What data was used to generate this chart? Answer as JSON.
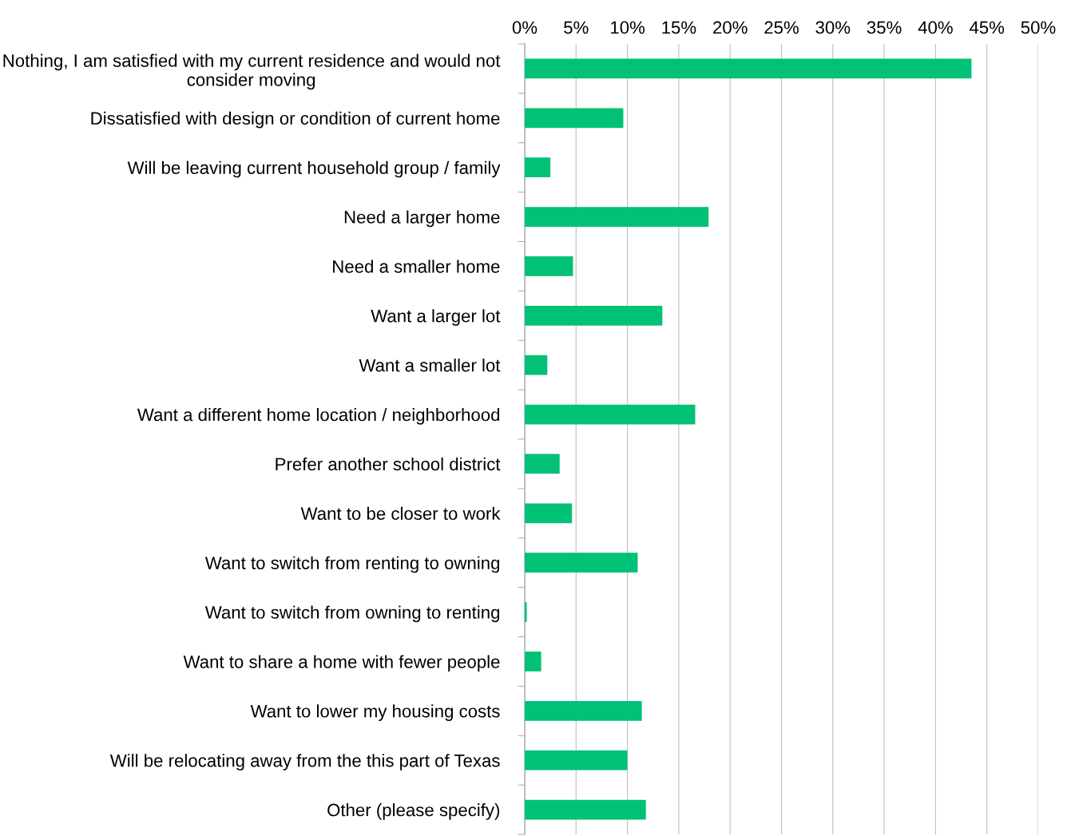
{
  "chart_data": {
    "type": "bar",
    "orientation": "horizontal",
    "categories": [
      "Nothing, I am satisfied with my current residence and would not\nconsider moving",
      "Dissatisfied with design or condition of current home",
      "Will be leaving current household group / family",
      "Need a larger home",
      "Need a smaller home",
      "Want a larger lot",
      "Want a smaller lot",
      "Want a different home location / neighborhood",
      "Prefer another school district",
      "Want to be closer to work",
      "Want to switch from renting to owning",
      "Want to switch from owning to renting",
      "Want to share a home with fewer people",
      "Want to lower my housing costs",
      "Will be relocating away from the this part of Texas",
      "Other (please specify)"
    ],
    "values": [
      43.5,
      9.6,
      2.5,
      17.9,
      4.7,
      13.4,
      2.2,
      16.6,
      3.4,
      4.6,
      11.0,
      0.2,
      1.6,
      11.4,
      10.0,
      11.8
    ],
    "color": "#00c176",
    "xlim": [
      0,
      50
    ],
    "xticks": [
      {
        "value": 0,
        "label": "0%"
      },
      {
        "value": 5,
        "label": "5%"
      },
      {
        "value": 10,
        "label": "10%"
      },
      {
        "value": 15,
        "label": "15%"
      },
      {
        "value": 20,
        "label": "20%"
      },
      {
        "value": 25,
        "label": "25%"
      },
      {
        "value": 30,
        "label": "30%"
      },
      {
        "value": 35,
        "label": "35%"
      },
      {
        "value": 40,
        "label": "40%"
      },
      {
        "value": 45,
        "label": "45%"
      },
      {
        "value": 50,
        "label": "50%"
      }
    ],
    "grid": "x",
    "legend": false
  }
}
